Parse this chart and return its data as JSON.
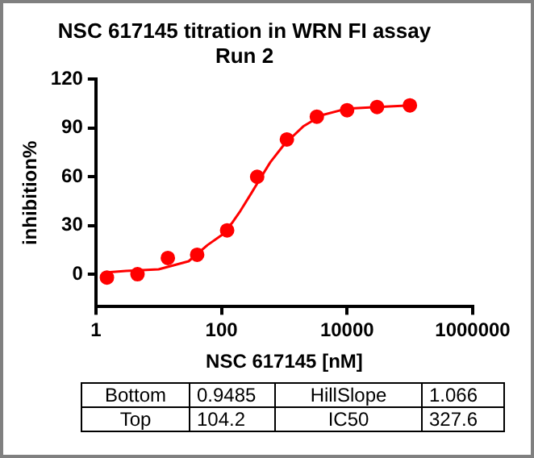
{
  "chart_data": {
    "type": "scatter",
    "title": [
      "NSC 617145 titration in WRN FI assay",
      "Run 2"
    ],
    "xlabel": "NSC 617145 [nM]",
    "ylabel": "inhibition%",
    "log": "x",
    "xlim": [
      1,
      1000000
    ],
    "xticks": [
      1,
      100,
      10000,
      1000000
    ],
    "ylim": [
      -20,
      120
    ],
    "yticks": [
      0,
      30,
      60,
      90,
      120
    ],
    "grid": false,
    "legend": false,
    "marker": "circle",
    "series": [
      {
        "type": "scatter",
        "color": "#ff0000",
        "x": [
          1.5,
          4.6,
          14,
          41,
          123,
          370,
          1100,
          3300,
          10000,
          30000,
          100000
        ],
        "values": [
          -2,
          0,
          10,
          12,
          27,
          60,
          83,
          97,
          101,
          103,
          104
        ]
      },
      {
        "type": "line",
        "marker": "none",
        "line_style": "solid",
        "color": "#ff0000",
        "x": [
          1.4,
          3,
          10,
          30,
          60,
          100,
          150,
          200,
          300,
          400,
          600,
          1000,
          2000,
          4000,
          10000,
          30000,
          100000
        ],
        "values": [
          1,
          2,
          3,
          8,
          18,
          24,
          32,
          39,
          50,
          58,
          69,
          80,
          91,
          98,
          102,
          103,
          104
        ]
      }
    ],
    "annotations": [
      "Bottom",
      "0.9485",
      "HillSlope",
      "1.066",
      "Top",
      "104.2",
      "IC50",
      "327.6"
    ]
  }
}
